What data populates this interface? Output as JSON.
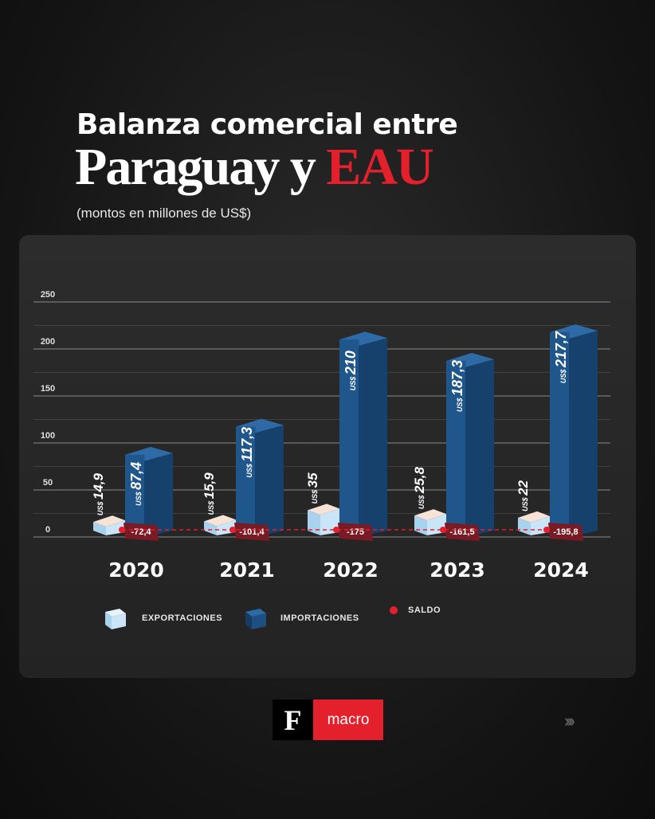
{
  "header": {
    "title_line1": "Balanza comercial entre",
    "title_line2_main": "Paraguay y ",
    "title_line2_accent": "EAU",
    "subtitle": "(montos en millones de US$)"
  },
  "chart_data": {
    "type": "bar",
    "categories": [
      "2020",
      "2021",
      "2022",
      "2023",
      "2024"
    ],
    "series": [
      {
        "name": "EXPORTACIONES",
        "values": [
          14.9,
          15.9,
          35,
          25.8,
          22
        ],
        "labels": [
          "14,9",
          "15,9",
          "35",
          "25,8",
          "22"
        ]
      },
      {
        "name": "IMPORTACIONES",
        "values": [
          87.4,
          117.3,
          210,
          187.3,
          217.7
        ],
        "labels": [
          "87,4",
          "117,3",
          "210",
          "187,3",
          "217,7"
        ]
      },
      {
        "name": "SALDO",
        "values": [
          -72.4,
          -101.4,
          -175,
          -161.5,
          -195.8
        ],
        "labels": [
          "-72,4",
          "-101,4",
          "-175",
          "-161,5",
          "-195,8"
        ]
      }
    ],
    "currency_prefix": "US$",
    "yticks": [
      "0",
      "50",
      "100",
      "150",
      "200",
      "250"
    ],
    "ylim": [
      0,
      250
    ],
    "grid": true,
    "legend_position": "bottom",
    "colors": {
      "exports": "#bfe0f5",
      "imports": "#1e4f82",
      "saldo": "#e3202c",
      "saldo_tag": "#7a1a24"
    }
  },
  "legend": {
    "exports": "EXPORTACIONES",
    "imports": "IMPORTACIONES",
    "saldo": "SALDO"
  },
  "footer": {
    "logo_letter": "F",
    "logo_text": "macro",
    "next_arrows": "›››"
  }
}
